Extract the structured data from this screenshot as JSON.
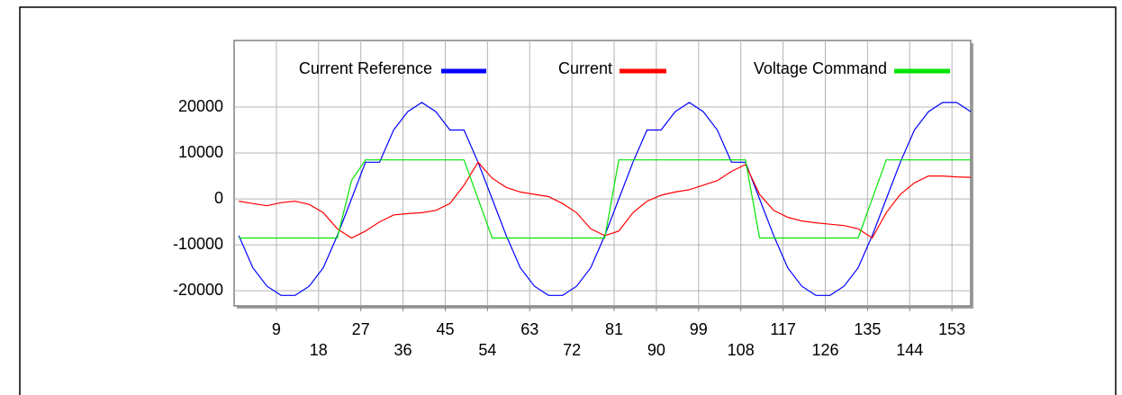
{
  "chart_data": {
    "type": "line",
    "x": [
      1,
      4,
      7,
      10,
      13,
      16,
      19,
      22,
      25,
      28,
      31,
      34,
      37,
      40,
      43,
      46,
      49,
      52,
      55,
      58,
      61,
      64,
      67,
      70,
      73,
      76,
      79,
      82,
      85,
      88,
      91,
      94,
      97,
      100,
      103,
      106,
      109,
      112,
      115,
      118,
      121,
      124,
      127,
      130,
      133,
      136,
      139,
      142,
      145,
      148,
      151,
      154,
      157
    ],
    "series": [
      {
        "name": "Current Reference",
        "color": "#0000ff",
        "values": [
          -8000,
          -15000,
          -19000,
          -21000,
          -21000,
          -19000,
          -15000,
          -8000,
          0,
          8000,
          8000,
          15000,
          19000,
          21000,
          19000,
          15000,
          15000,
          8000,
          0,
          -8000,
          -15000,
          -19000,
          -21000,
          -21000,
          -19000,
          -15000,
          -8000,
          0,
          8000,
          15000,
          15000,
          19000,
          21000,
          19000,
          15000,
          8000,
          8000,
          0,
          -8000,
          -15000,
          -19000,
          -21000,
          -21000,
          -19000,
          -15000,
          -8000,
          0,
          8000,
          15000,
          19000,
          21000,
          21000,
          19000
        ]
      },
      {
        "name": "Current",
        "color": "#ff0000",
        "values": [
          -500,
          -1000,
          -1500,
          -800,
          -500,
          -1200,
          -3000,
          -6500,
          -8500,
          -7000,
          -5000,
          -3500,
          -3200,
          -3000,
          -2500,
          -1000,
          3000,
          8000,
          4500,
          2500,
          1500,
          1000,
          500,
          -1000,
          -3000,
          -6500,
          -8000,
          -7000,
          -3000,
          -500,
          800,
          1500,
          2000,
          3000,
          4000,
          6000,
          7500,
          1000,
          -2500,
          -4000,
          -4800,
          -5200,
          -5500,
          -5800,
          -6500,
          -8500,
          -3000,
          1000,
          3500,
          5000,
          5000,
          4800,
          4700
        ]
      },
      {
        "name": "Voltage Command",
        "color": "#00e600",
        "values": [
          -8500,
          -8500,
          -8500,
          -8500,
          -8500,
          -8500,
          -8500,
          -8500,
          4000,
          8500,
          8500,
          8500,
          8500,
          8500,
          8500,
          8500,
          8500,
          0,
          -8500,
          -8500,
          -8500,
          -8500,
          -8500,
          -8500,
          -8500,
          -8500,
          -8500,
          8500,
          8500,
          8500,
          8500,
          8500,
          8500,
          8500,
          8500,
          8500,
          8500,
          -8500,
          -8500,
          -8500,
          -8500,
          -8500,
          -8500,
          -8500,
          -8500,
          0,
          8500,
          8500,
          8500,
          8500,
          8500,
          8500,
          8500
        ]
      }
    ],
    "xlim": [
      0,
      157
    ],
    "xticks": [
      9,
      18,
      27,
      36,
      45,
      54,
      63,
      72,
      81,
      90,
      99,
      108,
      117,
      126,
      135,
      144,
      153
    ],
    "ylim": [
      -23300,
      34500
    ],
    "yticks": [
      -20000,
      -10000,
      0,
      10000,
      20000
    ],
    "grid": true
  }
}
